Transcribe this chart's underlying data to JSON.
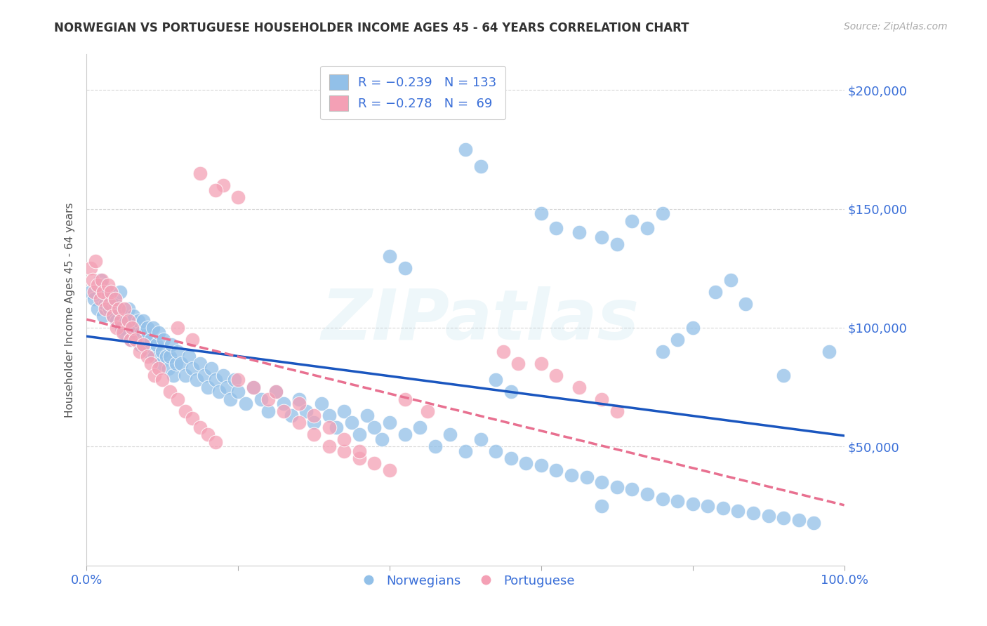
{
  "title": "NORWEGIAN VS PORTUGUESE HOUSEHOLDER INCOME AGES 45 - 64 YEARS CORRELATION CHART",
  "source": "Source: ZipAtlas.com",
  "ylabel": "Householder Income Ages 45 - 64 years",
  "ytick_labels": [
    "$50,000",
    "$100,000",
    "$150,000",
    "$200,000"
  ],
  "ytick_values": [
    50000,
    100000,
    150000,
    200000
  ],
  "ylim": [
    0,
    215000
  ],
  "xlim": [
    0.0,
    1.0
  ],
  "watermark": "ZIPatlas",
  "norwegian_color": "#92c0e8",
  "portuguese_color": "#f4a0b5",
  "trendline_norwegian_color": "#1a56bf",
  "trendline_portuguese_color": "#e87090",
  "title_color": "#333333",
  "axis_text_color": "#3a6fd8",
  "grid_color": "#d8d8d8",
  "background_color": "#ffffff",
  "norwegian_R": -0.239,
  "norwegian_N": 133,
  "portuguese_R": -0.278,
  "portuguese_N": 69,
  "norw_x": [
    0.005,
    0.01,
    0.015,
    0.018,
    0.02,
    0.022,
    0.025,
    0.028,
    0.03,
    0.032,
    0.035,
    0.038,
    0.04,
    0.042,
    0.044,
    0.046,
    0.048,
    0.05,
    0.052,
    0.055,
    0.058,
    0.06,
    0.062,
    0.065,
    0.068,
    0.07,
    0.072,
    0.075,
    0.078,
    0.08,
    0.082,
    0.085,
    0.088,
    0.09,
    0.092,
    0.095,
    0.098,
    0.1,
    0.102,
    0.105,
    0.108,
    0.11,
    0.112,
    0.115,
    0.118,
    0.12,
    0.125,
    0.13,
    0.135,
    0.14,
    0.145,
    0.15,
    0.155,
    0.16,
    0.165,
    0.17,
    0.175,
    0.18,
    0.185,
    0.19,
    0.195,
    0.2,
    0.21,
    0.22,
    0.23,
    0.24,
    0.25,
    0.26,
    0.27,
    0.28,
    0.29,
    0.3,
    0.31,
    0.32,
    0.33,
    0.34,
    0.35,
    0.36,
    0.37,
    0.38,
    0.39,
    0.4,
    0.42,
    0.44,
    0.46,
    0.48,
    0.5,
    0.52,
    0.54,
    0.56,
    0.58,
    0.6,
    0.62,
    0.64,
    0.66,
    0.68,
    0.7,
    0.72,
    0.74,
    0.76,
    0.78,
    0.8,
    0.82,
    0.84,
    0.86,
    0.88,
    0.9,
    0.92,
    0.94,
    0.96,
    0.4,
    0.42,
    0.5,
    0.52,
    0.6,
    0.62,
    0.65,
    0.68,
    0.7,
    0.72,
    0.74,
    0.76,
    0.98,
    0.85,
    0.83,
    0.87,
    0.8,
    0.78,
    0.76,
    0.92,
    0.54,
    0.56,
    0.68
  ],
  "norw_y": [
    115000,
    112000,
    108000,
    120000,
    118000,
    105000,
    110000,
    115000,
    108000,
    112000,
    105000,
    110000,
    103000,
    108000,
    115000,
    100000,
    105000,
    98000,
    103000,
    108000,
    95000,
    100000,
    105000,
    98000,
    103000,
    93000,
    98000,
    103000,
    95000,
    100000,
    90000,
    95000,
    100000,
    88000,
    93000,
    98000,
    85000,
    90000,
    95000,
    88000,
    83000,
    88000,
    93000,
    80000,
    85000,
    90000,
    85000,
    80000,
    88000,
    83000,
    78000,
    85000,
    80000,
    75000,
    83000,
    78000,
    73000,
    80000,
    75000,
    70000,
    78000,
    73000,
    68000,
    75000,
    70000,
    65000,
    73000,
    68000,
    63000,
    70000,
    65000,
    60000,
    68000,
    63000,
    58000,
    65000,
    60000,
    55000,
    63000,
    58000,
    53000,
    60000,
    55000,
    58000,
    50000,
    55000,
    48000,
    53000,
    48000,
    45000,
    43000,
    42000,
    40000,
    38000,
    37000,
    35000,
    33000,
    32000,
    30000,
    28000,
    27000,
    26000,
    25000,
    24000,
    23000,
    22000,
    21000,
    20000,
    19000,
    18000,
    130000,
    125000,
    175000,
    168000,
    148000,
    142000,
    140000,
    138000,
    135000,
    145000,
    142000,
    148000,
    90000,
    120000,
    115000,
    110000,
    100000,
    95000,
    90000,
    80000,
    78000,
    73000,
    25000
  ],
  "port_x": [
    0.005,
    0.008,
    0.01,
    0.012,
    0.015,
    0.018,
    0.02,
    0.022,
    0.025,
    0.028,
    0.03,
    0.032,
    0.035,
    0.038,
    0.04,
    0.042,
    0.045,
    0.048,
    0.05,
    0.055,
    0.058,
    0.06,
    0.065,
    0.07,
    0.075,
    0.08,
    0.085,
    0.09,
    0.095,
    0.1,
    0.11,
    0.12,
    0.13,
    0.14,
    0.15,
    0.16,
    0.17,
    0.18,
    0.2,
    0.22,
    0.24,
    0.26,
    0.28,
    0.3,
    0.32,
    0.34,
    0.36,
    0.38,
    0.4,
    0.15,
    0.17,
    0.2,
    0.25,
    0.28,
    0.3,
    0.32,
    0.34,
    0.36,
    0.6,
    0.62,
    0.65,
    0.68,
    0.7,
    0.55,
    0.57,
    0.12,
    0.14,
    0.42,
    0.45
  ],
  "port_y": [
    125000,
    120000,
    115000,
    128000,
    118000,
    112000,
    120000,
    115000,
    108000,
    118000,
    110000,
    115000,
    105000,
    112000,
    100000,
    108000,
    103000,
    98000,
    108000,
    103000,
    95000,
    100000,
    95000,
    90000,
    93000,
    88000,
    85000,
    80000,
    83000,
    78000,
    73000,
    70000,
    65000,
    62000,
    58000,
    55000,
    52000,
    160000,
    155000,
    75000,
    70000,
    65000,
    60000,
    55000,
    50000,
    48000,
    45000,
    43000,
    40000,
    165000,
    158000,
    78000,
    73000,
    68000,
    63000,
    58000,
    53000,
    48000,
    85000,
    80000,
    75000,
    70000,
    65000,
    90000,
    85000,
    100000,
    95000,
    70000,
    65000
  ]
}
